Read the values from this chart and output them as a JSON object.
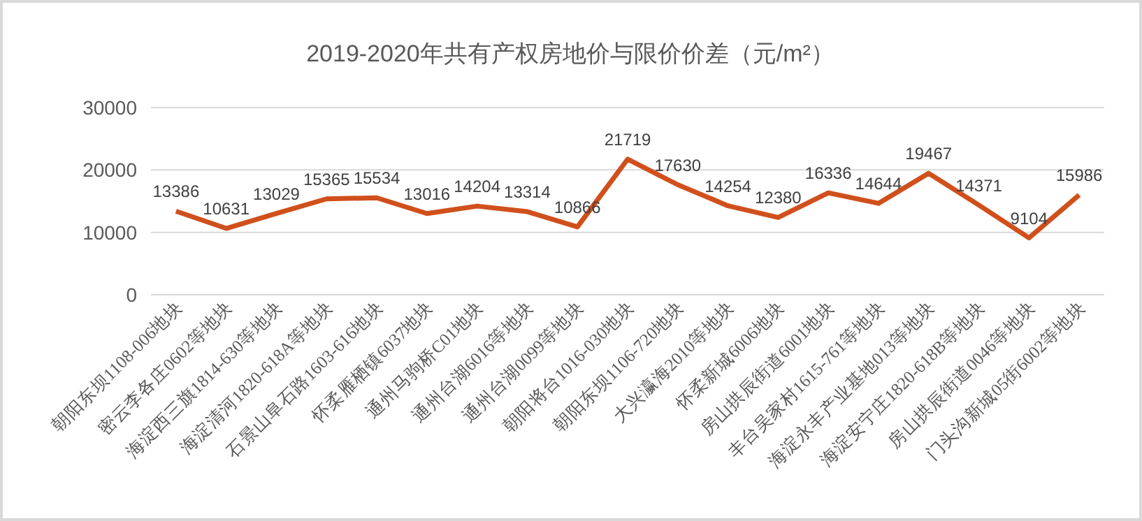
{
  "chart_data": {
    "type": "line",
    "title": "2019-2020年共有产权房地价与限价价差（元/m²）",
    "categories": [
      "朝阳东坝1108-006地块",
      "密云李各庄0602等地块",
      "海淀西三旗1814-630等地块",
      "海淀清河1820-618A等地块",
      "石景山阜石路1603-616地块",
      "怀柔雁栖镇6037地块",
      "通州马驹桥C01地块",
      "通州台湖6016等地块",
      "通州台湖0099等地块",
      "朝阳将台1016-030地块",
      "朝阳东坝1106-720地块",
      "大兴瀛海2010等地块",
      "怀柔新城6006地块",
      "房山拱辰街道6001地块",
      "丰台吴家村1615-761等地块",
      "海淀永丰产业基地013等地块",
      "海淀安宁庄1820-618B等地块",
      "房山拱辰街道0046等地块",
      "门头沟新城05街6002等地块"
    ],
    "values": [
      13386,
      10631,
      13029,
      15365,
      15534,
      13016,
      14204,
      13314,
      10866,
      21719,
      17630,
      14254,
      12380,
      16336,
      14644,
      19467,
      14371,
      9104,
      15986
    ],
    "color": "#d0501c",
    "ylim": [
      0,
      30000
    ],
    "yticks": [
      0,
      10000,
      20000,
      30000
    ],
    "grid": "y",
    "data_labels": true,
    "marker": "none"
  }
}
